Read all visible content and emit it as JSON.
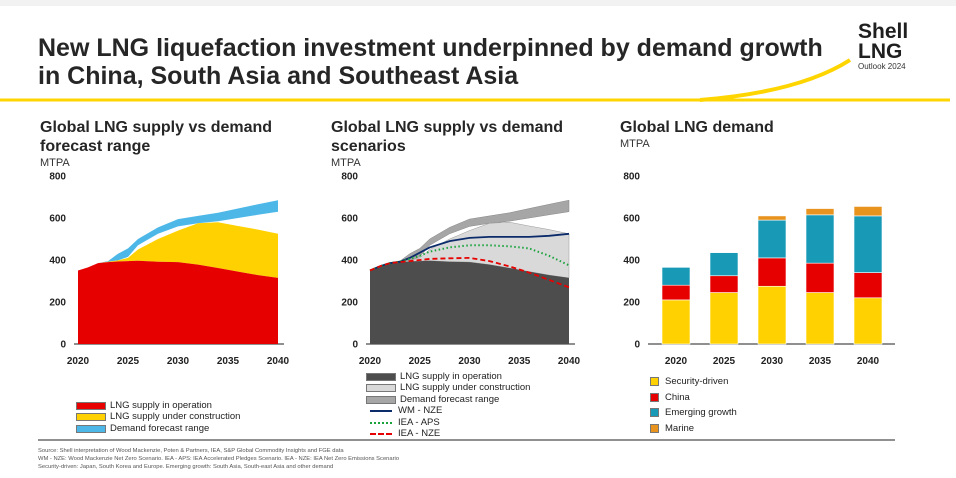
{
  "header": {
    "title": "New LNG liquefaction investment underpinned by demand growth in China, South Asia and Southeast Asia",
    "brand_line1": "Shell",
    "brand_line2": "LNG",
    "brand_line3": "Outlook 2024"
  },
  "colors": {
    "accent_yellow": "#ffd500",
    "red": "#e60000",
    "yellow": "#ffd100",
    "light_blue": "#4db8e8",
    "teal": "#1899b5",
    "orange": "#e8931e",
    "dark_grey": "#4d4d4d",
    "light_grey": "#d9d9d9",
    "mid_grey": "#a6a6a6",
    "navy": "#0b2b6b",
    "green": "#1aa33d",
    "dashed_red": "#e60000"
  },
  "chart_data": [
    {
      "type": "area",
      "title": "Global LNG supply vs demand forecast range",
      "ylabel": "MTPA",
      "ylim": [
        0,
        800
      ],
      "yticks": [
        "800",
        "600",
        "400",
        "200",
        "0"
      ],
      "xticks": [
        "2020",
        "2025",
        "2030",
        "2035",
        "2040"
      ],
      "x": [
        2020,
        2021,
        2022,
        2023,
        2024,
        2025,
        2026,
        2028,
        2030,
        2032,
        2034,
        2036,
        2038,
        2040
      ],
      "series": [
        {
          "name": "LNG supply in operation",
          "values": [
            350,
            365,
            385,
            390,
            393,
            395,
            396,
            392,
            390,
            378,
            362,
            345,
            328,
            315
          ]
        },
        {
          "name": "LNG supply under construction",
          "values": [
            350,
            365,
            385,
            392,
            398,
            410,
            450,
            500,
            540,
            575,
            580,
            562,
            545,
            525
          ]
        },
        {
          "name": "Demand forecast range",
          "lower": [
            350,
            365,
            385,
            392,
            398,
            415,
            470,
            525,
            560,
            575,
            585,
            600,
            615,
            630
          ],
          "upper": [
            350,
            365,
            385,
            395,
            430,
            455,
            500,
            555,
            595,
            610,
            625,
            645,
            665,
            685
          ]
        }
      ],
      "legend": [
        "LNG supply in operation",
        "LNG supply under construction",
        "Demand forecast range"
      ]
    },
    {
      "type": "area",
      "title": "Global LNG supply vs demand scenarios",
      "ylabel": "MTPA",
      "ylim": [
        0,
        800
      ],
      "yticks": [
        "800",
        "600",
        "400",
        "200",
        "0"
      ],
      "xticks": [
        "2020",
        "2025",
        "2030",
        "2035",
        "2040"
      ],
      "x": [
        2020,
        2021,
        2022,
        2023,
        2024,
        2025,
        2026,
        2028,
        2030,
        2032,
        2034,
        2036,
        2038,
        2040
      ],
      "series": [
        {
          "name": "LNG supply in operation",
          "values": [
            350,
            365,
            385,
            390,
            393,
            395,
            396,
            392,
            390,
            378,
            362,
            345,
            328,
            315
          ]
        },
        {
          "name": "LNG supply under construction",
          "values": [
            350,
            365,
            385,
            392,
            398,
            410,
            450,
            500,
            540,
            575,
            580,
            562,
            545,
            525
          ]
        },
        {
          "name": "Demand forecast range",
          "lower": [
            350,
            365,
            385,
            392,
            398,
            415,
            470,
            525,
            560,
            575,
            585,
            600,
            615,
            630
          ],
          "upper": [
            350,
            365,
            385,
            395,
            430,
            455,
            500,
            555,
            595,
            610,
            625,
            645,
            665,
            685
          ]
        },
        {
          "name": "WM - NZE",
          "values": [
            350,
            370,
            385,
            392,
            410,
            435,
            460,
            490,
            505,
            510,
            510,
            510,
            515,
            525
          ]
        },
        {
          "name": "IEA - APS",
          "values": [
            350,
            370,
            385,
            392,
            405,
            420,
            440,
            460,
            470,
            470,
            465,
            455,
            420,
            375
          ]
        },
        {
          "name": "IEA - NZE",
          "values": [
            350,
            370,
            385,
            390,
            395,
            400,
            405,
            408,
            410,
            395,
            370,
            340,
            305,
            270
          ]
        }
      ],
      "legend": [
        "LNG supply in operation",
        "LNG supply under construction",
        "Demand forecast range",
        "WM - NZE",
        "IEA - APS",
        "IEA - NZE"
      ]
    },
    {
      "type": "bar",
      "stacked": true,
      "title": "Global LNG demand",
      "ylabel": "MTPA",
      "ylim": [
        0,
        800
      ],
      "yticks": [
        "800",
        "600",
        "400",
        "200",
        "0"
      ],
      "categories": [
        "2020",
        "2025",
        "2030",
        "2035",
        "2040"
      ],
      "series": [
        {
          "name": "Security-driven",
          "values": [
            210,
            245,
            275,
            245,
            220
          ]
        },
        {
          "name": "China",
          "values": [
            70,
            80,
            135,
            140,
            120
          ]
        },
        {
          "name": "Emerging growth",
          "values": [
            85,
            110,
            180,
            230,
            270
          ]
        },
        {
          "name": "Marine",
          "values": [
            0,
            0,
            20,
            30,
            45
          ]
        }
      ],
      "legend": [
        "Security-driven",
        "China",
        "Emerging growth",
        "Marine"
      ]
    }
  ],
  "source": {
    "line1": "Source: Shell interpretation of Wood Mackenzie, Poten & Partners, IEA, S&P Global Commodity Insights and FGE data",
    "line2": "WM - NZE: Wood Mackenzie Net Zero Scenario. IEA - APS: IEA Accelerated Pledges Scenario. IEA - NZE: IEA Net Zero Emissions Scenario",
    "line3": "Security-driven: Japan, South Korea and Europe. Emerging growth: South Asia, South-east Asia and other demand"
  }
}
